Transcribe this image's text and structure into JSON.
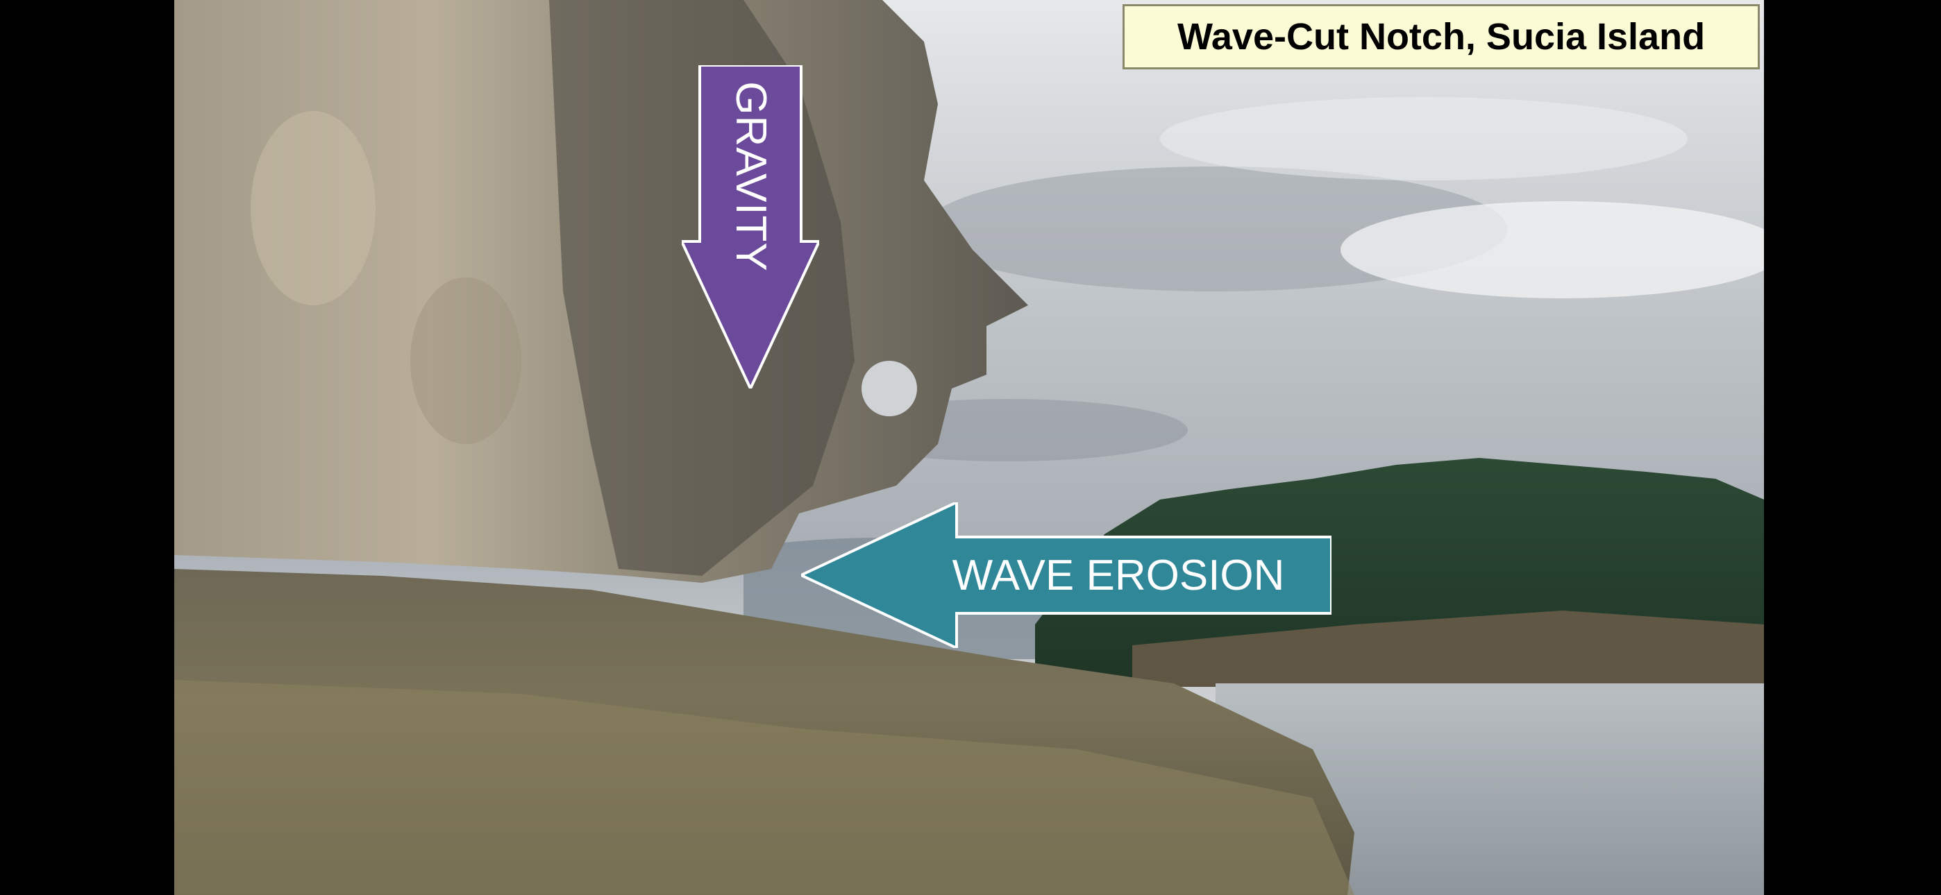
{
  "slide": {
    "title": "Wave-Cut Notch, Sucia Island"
  },
  "annotations": {
    "gravity": {
      "label": "GRAVITY",
      "color": "#6b4a9b",
      "direction": "down"
    },
    "wave_erosion": {
      "label": "WAVE EROSION",
      "color": "#2f8798",
      "direction": "left"
    }
  }
}
